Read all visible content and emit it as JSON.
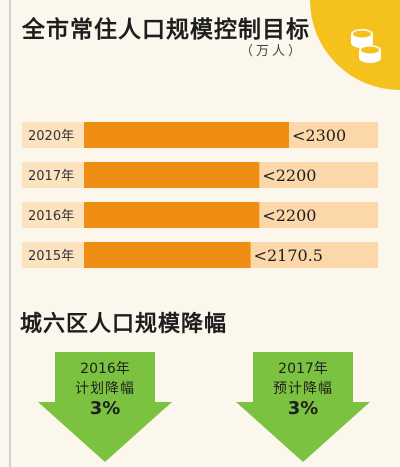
{
  "header": {
    "title": "全市常住人口规模控制目标",
    "unit": "（万人）"
  },
  "chart_data": {
    "type": "bar",
    "orientation": "horizontal",
    "categories": [
      "2020年",
      "2017年",
      "2016年",
      "2015年"
    ],
    "values": [
      2300,
      2200,
      2200,
      2170.5
    ],
    "value_labels": [
      "<2300",
      "<2200",
      "<2200",
      "<2170.5"
    ],
    "xlim": [
      1400,
      2600
    ],
    "grid": false,
    "colors": {
      "bar": "#ef8d12",
      "track": "#fbd7a9",
      "label_box": "#fbe3c0"
    }
  },
  "section": {
    "title": "城六区人口规模降幅"
  },
  "arrows": [
    {
      "year": "2016年",
      "label": "计划降幅",
      "value": "3%"
    },
    {
      "year": "2017年",
      "label": "预计降幅",
      "value": "3%"
    }
  ],
  "colors": {
    "accent_yellow": "#f4c11d",
    "arrow_green": "#7cc241"
  },
  "icons": {
    "corner": "coin-stack-icon"
  }
}
